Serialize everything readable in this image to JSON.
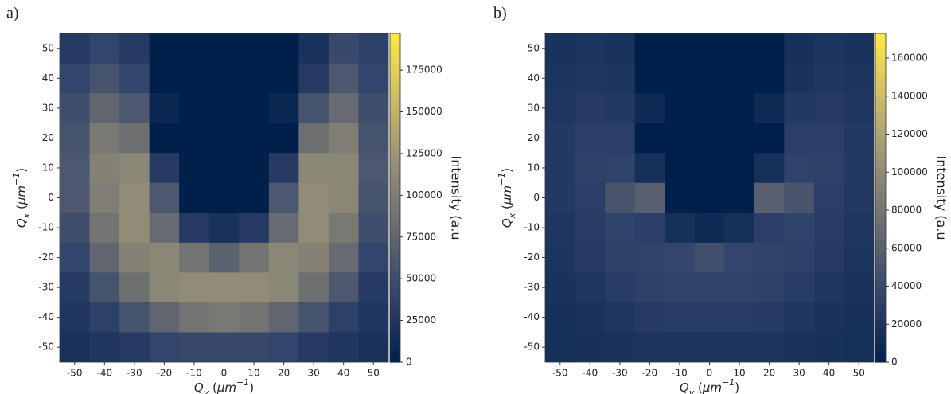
{
  "chart_data": [
    {
      "type": "heatmap",
      "label": "a)",
      "xlabel_parts": [
        "Q",
        "y",
        " (",
        "μm",
        "−1",
        ")"
      ],
      "ylabel_parts": [
        "Q",
        "x",
        " (",
        "μm",
        "−1",
        ")"
      ],
      "x": [
        -50,
        -40,
        -30,
        -20,
        -10,
        0,
        10,
        20,
        30,
        40,
        50
      ],
      "y": [
        50,
        40,
        30,
        20,
        10,
        0,
        -10,
        -20,
        -30,
        -40,
        -50
      ],
      "values": [
        [
          30000,
          40000,
          30000,
          0,
          0,
          0,
          0,
          0,
          20000,
          45000,
          35000
        ],
        [
          40000,
          55000,
          40000,
          0,
          0,
          0,
          0,
          0,
          30000,
          60000,
          40000
        ],
        [
          50000,
          75000,
          60000,
          8000,
          0,
          0,
          0,
          8000,
          55000,
          80000,
          50000
        ],
        [
          55000,
          95000,
          85000,
          0,
          0,
          0,
          0,
          0,
          85000,
          100000,
          55000
        ],
        [
          60000,
          105000,
          110000,
          30000,
          0,
          0,
          0,
          30000,
          110000,
          110000,
          60000
        ],
        [
          60000,
          100000,
          115000,
          60000,
          0,
          0,
          0,
          60000,
          115000,
          110000,
          55000
        ],
        [
          50000,
          90000,
          115000,
          80000,
          30000,
          20000,
          30000,
          80000,
          115000,
          95000,
          50000
        ],
        [
          40000,
          75000,
          105000,
          110000,
          90000,
          70000,
          90000,
          110000,
          105000,
          80000,
          40000
        ],
        [
          30000,
          55000,
          85000,
          110000,
          115000,
          115000,
          115000,
          110000,
          85000,
          60000,
          30000
        ],
        [
          25000,
          35000,
          55000,
          75000,
          90000,
          95000,
          90000,
          75000,
          55000,
          35000,
          25000
        ],
        [
          20000,
          25000,
          30000,
          40000,
          45000,
          45000,
          45000,
          40000,
          30000,
          25000,
          20000
        ]
      ],
      "xlim": [
        -55,
        55
      ],
      "ylim": [
        -55,
        55
      ],
      "xticks": [
        -50,
        -40,
        -30,
        -20,
        -10,
        0,
        10,
        20,
        30,
        40,
        50
      ],
      "yticks": [
        -50,
        -40,
        -30,
        -20,
        -10,
        0,
        10,
        20,
        30,
        40,
        50
      ],
      "colorbar_label": "Intensity (a.u",
      "clim": [
        0,
        197000
      ],
      "cticks": [
        0,
        25000,
        50000,
        75000,
        100000,
        125000,
        150000,
        175000
      ],
      "colormap": [
        "#00204c",
        "#31446b",
        "#666970",
        "#958f78",
        "#cbba69",
        "#ffe945"
      ]
    },
    {
      "type": "heatmap",
      "label": "b)",
      "xlabel_parts": [
        "Q",
        "y",
        " (",
        "μm",
        "−1",
        ")"
      ],
      "ylabel_parts": [
        "Q",
        "x",
        " (",
        "μm",
        "−1",
        ")"
      ],
      "x": [
        -50,
        -40,
        -30,
        -20,
        -10,
        0,
        10,
        20,
        30,
        40,
        50
      ],
      "y": [
        50,
        40,
        30,
        20,
        10,
        0,
        -10,
        -20,
        -30,
        -40,
        -50
      ],
      "values": [
        [
          18000,
          20000,
          18000,
          0,
          0,
          0,
          0,
          0,
          16000,
          20000,
          18000
        ],
        [
          20000,
          22000,
          20000,
          0,
          0,
          0,
          0,
          0,
          18000,
          22000,
          20000
        ],
        [
          22000,
          26000,
          24000,
          10000,
          0,
          0,
          0,
          10000,
          24000,
          26000,
          22000
        ],
        [
          24000,
          30000,
          30000,
          0,
          0,
          0,
          0,
          0,
          30000,
          30000,
          24000
        ],
        [
          24000,
          32000,
          34000,
          15000,
          0,
          0,
          0,
          15000,
          34000,
          32000,
          24000
        ],
        [
          24000,
          30000,
          50000,
          60000,
          0,
          0,
          0,
          60000,
          50000,
          30000,
          24000
        ],
        [
          22000,
          28000,
          34000,
          30000,
          15000,
          10000,
          15000,
          30000,
          34000,
          28000,
          22000
        ],
        [
          20000,
          26000,
          32000,
          34000,
          36000,
          45000,
          36000,
          34000,
          32000,
          26000,
          20000
        ],
        [
          18000,
          22000,
          28000,
          32000,
          34000,
          34000,
          34000,
          32000,
          28000,
          22000,
          18000
        ],
        [
          16000,
          18000,
          22000,
          26000,
          28000,
          28000,
          28000,
          26000,
          22000,
          18000,
          16000
        ],
        [
          15000,
          16000,
          18000,
          20000,
          20000,
          20000,
          20000,
          20000,
          18000,
          16000,
          15000
        ]
      ],
      "xlim": [
        -55,
        55
      ],
      "ylim": [
        -55,
        55
      ],
      "xticks": [
        -50,
        -40,
        -30,
        -20,
        -10,
        0,
        10,
        20,
        30,
        40,
        50
      ],
      "yticks": [
        -50,
        -40,
        -30,
        -20,
        -10,
        0,
        10,
        20,
        30,
        40,
        50
      ],
      "colorbar_label": "Intensity (a.u",
      "clim": [
        0,
        173000
      ],
      "cticks": [
        0,
        20000,
        40000,
        60000,
        80000,
        100000,
        120000,
        140000,
        160000
      ],
      "colormap": [
        "#00204c",
        "#31446b",
        "#666970",
        "#958f78",
        "#cbba69",
        "#ffe945"
      ]
    }
  ]
}
